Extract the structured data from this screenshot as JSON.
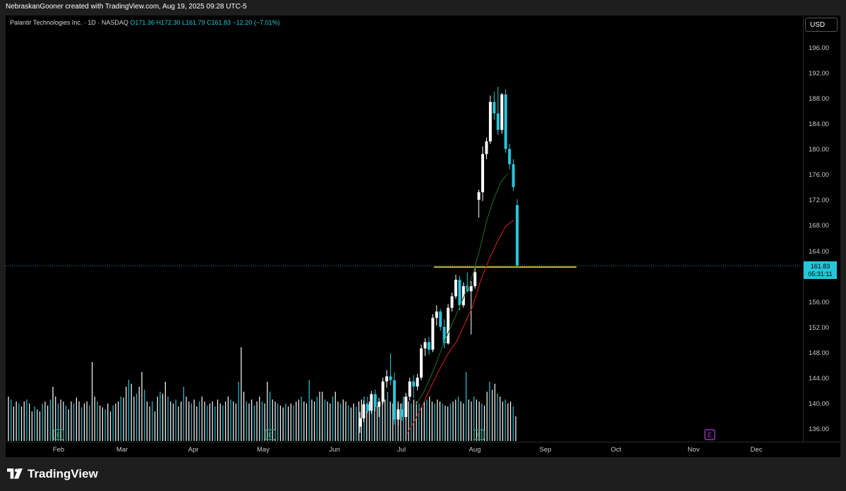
{
  "attribution": "NebraskanGooner created with TradingView.com, Aug 19, 2025 09:28 UTC-5",
  "legend": {
    "symbol": "Palantir Technologies Inc. · 1D · NASDAQ",
    "ohlc": "O171.36 H172.30 L161.79 C161.83 −12.20 (−7.01%)"
  },
  "currency": "USD",
  "last_price": {
    "price": "161.83",
    "countdown": "05:31:11"
  },
  "brand": "TradingView",
  "earnings_marker": "E",
  "colors": {
    "up": "#ffffff",
    "down": "#26c6da",
    "ma_fast": "#1b5e20",
    "ma_slow": "#b71c1c",
    "support": "#ffeb3b",
    "background": "#000000"
  },
  "chart_data": {
    "type": "candlestick",
    "interval": "1D",
    "ylim": [
      135,
      198
    ],
    "y_ticks": [
      "196.00",
      "192.00",
      "188.00",
      "184.00",
      "180.00",
      "176.00",
      "172.00",
      "168.00",
      "164.00",
      "160.00",
      "156.00",
      "152.00",
      "148.00",
      "144.00",
      "140.00",
      "136.00"
    ],
    "x_ticks": [
      "Feb",
      "Mar",
      "Apr",
      "May",
      "Jun",
      "Jul",
      "Aug",
      "Sep",
      "Oct",
      "Nov",
      "Dec"
    ],
    "candles": [
      {
        "date": "2025-06-25",
        "o": 136.5,
        "h": 138.8,
        "l": 135.5,
        "c": 137.8
      },
      {
        "date": "2025-06-26",
        "o": 137.8,
        "h": 140.6,
        "l": 137.2,
        "c": 140.0
      },
      {
        "date": "2025-06-27",
        "o": 140.0,
        "h": 141.2,
        "l": 138.6,
        "c": 139.0
      },
      {
        "date": "2025-06-30",
        "o": 139.0,
        "h": 142.1,
        "l": 138.5,
        "c": 141.6
      },
      {
        "date": "2025-07-01",
        "o": 141.6,
        "h": 142.3,
        "l": 138.9,
        "c": 139.6
      },
      {
        "date": "2025-07-02",
        "o": 139.6,
        "h": 141.0,
        "l": 138.0,
        "c": 140.4
      },
      {
        "date": "2025-07-03",
        "o": 140.4,
        "h": 144.2,
        "l": 140.0,
        "c": 143.6
      },
      {
        "date": "2025-07-07",
        "o": 143.6,
        "h": 145.4,
        "l": 142.6,
        "c": 144.4
      },
      {
        "date": "2025-07-08",
        "o": 144.4,
        "h": 148.0,
        "l": 143.0,
        "c": 143.8
      },
      {
        "date": "2025-07-09",
        "o": 143.8,
        "h": 145.0,
        "l": 136.8,
        "c": 137.6
      },
      {
        "date": "2025-07-10",
        "o": 137.6,
        "h": 140.0,
        "l": 136.6,
        "c": 139.2
      },
      {
        "date": "2025-07-11",
        "o": 139.2,
        "h": 140.2,
        "l": 137.4,
        "c": 138.0
      },
      {
        "date": "2025-07-14",
        "o": 138.0,
        "h": 141.8,
        "l": 137.6,
        "c": 141.2
      },
      {
        "date": "2025-07-15",
        "o": 141.2,
        "h": 144.2,
        "l": 140.6,
        "c": 143.6
      },
      {
        "date": "2025-07-16",
        "o": 143.6,
        "h": 144.6,
        "l": 141.0,
        "c": 142.8
      },
      {
        "date": "2025-07-17",
        "o": 142.8,
        "h": 144.8,
        "l": 142.2,
        "c": 144.2
      },
      {
        "date": "2025-07-18",
        "o": 144.2,
        "h": 149.4,
        "l": 143.8,
        "c": 148.8
      },
      {
        "date": "2025-07-21",
        "o": 148.8,
        "h": 150.4,
        "l": 147.6,
        "c": 149.8
      },
      {
        "date": "2025-07-22",
        "o": 149.8,
        "h": 150.6,
        "l": 147.8,
        "c": 148.6
      },
      {
        "date": "2025-07-23",
        "o": 148.6,
        "h": 154.2,
        "l": 148.2,
        "c": 153.6
      },
      {
        "date": "2025-07-24",
        "o": 153.6,
        "h": 155.6,
        "l": 152.4,
        "c": 154.6
      },
      {
        "date": "2025-07-25",
        "o": 154.6,
        "h": 155.0,
        "l": 151.6,
        "c": 152.2
      },
      {
        "date": "2025-07-28",
        "o": 152.2,
        "h": 153.4,
        "l": 148.8,
        "c": 149.6
      },
      {
        "date": "2025-07-29",
        "o": 149.6,
        "h": 155.8,
        "l": 149.4,
        "c": 155.2
      },
      {
        "date": "2025-07-30",
        "o": 155.2,
        "h": 157.6,
        "l": 154.6,
        "c": 157.0
      },
      {
        "date": "2025-07-31",
        "o": 157.0,
        "h": 160.4,
        "l": 156.6,
        "c": 159.6
      },
      {
        "date": "2025-08-01",
        "o": 159.6,
        "h": 160.2,
        "l": 154.8,
        "c": 155.6
      },
      {
        "date": "2025-08-04",
        "o": 155.6,
        "h": 159.2,
        "l": 155.2,
        "c": 158.6
      },
      {
        "date": "2025-08-05",
        "o": 158.6,
        "h": 160.8,
        "l": 157.6,
        "c": 157.8
      },
      {
        "date": "2025-08-06",
        "o": 157.8,
        "h": 159.4,
        "l": 151.0,
        "c": 158.6
      },
      {
        "date": "2025-08-07",
        "o": 158.6,
        "h": 161.6,
        "l": 158.2,
        "c": 160.8
      },
      {
        "date": "2025-08-08",
        "o": 172.2,
        "h": 173.8,
        "l": 169.4,
        "c": 173.4
      },
      {
        "date": "2025-08-11",
        "o": 173.4,
        "h": 180.6,
        "l": 172.0,
        "c": 179.4
      },
      {
        "date": "2025-08-12",
        "o": 179.4,
        "h": 182.0,
        "l": 178.6,
        "c": 181.4
      },
      {
        "date": "2025-08-13",
        "o": 181.4,
        "h": 188.6,
        "l": 181.0,
        "c": 187.6
      },
      {
        "date": "2025-08-14",
        "o": 187.6,
        "h": 189.2,
        "l": 184.8,
        "c": 185.8
      },
      {
        "date": "2025-08-15",
        "o": 185.8,
        "h": 190.0,
        "l": 182.4,
        "c": 183.2
      },
      {
        "date": "2025-08-18",
        "o": 183.2,
        "h": 189.0,
        "l": 182.6,
        "c": 188.8
      },
      {
        "date": "2025-08-19a",
        "o": 188.8,
        "h": 189.6,
        "l": 179.6,
        "c": 180.2
      },
      {
        "date": "2025-08-19b",
        "o": 180.2,
        "h": 181.0,
        "l": 177.0,
        "c": 177.8
      },
      {
        "date": "2025-08-19c",
        "o": 177.8,
        "h": 178.6,
        "l": 173.6,
        "c": 174.2
      },
      {
        "date": "2025-08-19d",
        "o": 171.36,
        "h": 172.3,
        "l": 161.79,
        "c": 161.83
      }
    ],
    "ma_fast": [
      140.0,
      141.8,
      144.2,
      147.0,
      150.0,
      152.4,
      155.0,
      157.6,
      160.4,
      164.4,
      169.0,
      172.4,
      175.0,
      176.4
    ],
    "ma_slow": [
      135.4,
      137.6,
      140.2,
      143.0,
      145.6,
      148.0,
      149.8,
      152.6,
      155.4,
      159.6,
      162.8,
      165.6,
      168.0,
      169.0
    ],
    "support_level": 161.6,
    "volume_relative": [
      0.45,
      0.42,
      0.35,
      0.4,
      0.38,
      0.35,
      0.4,
      0.42,
      0.38,
      0.3,
      0.35,
      0.32,
      0.3,
      0.38,
      0.4,
      0.36,
      0.42,
      0.55,
      0.45,
      0.38,
      0.42,
      0.4,
      0.36,
      0.32,
      0.4,
      0.38,
      0.44,
      0.4,
      0.34,
      0.38,
      0.4,
      0.36,
      0.8,
      0.45,
      0.4,
      0.36,
      0.34,
      0.32,
      0.38,
      0.3,
      0.36,
      0.38,
      0.4,
      0.45,
      0.44,
      0.55,
      0.62,
      0.58,
      0.45,
      0.48,
      0.55,
      0.7,
      0.52,
      0.4,
      0.35,
      0.4,
      0.3,
      0.45,
      0.5,
      0.48,
      0.6,
      0.45,
      0.4,
      0.38,
      0.42,
      0.35,
      0.4,
      0.55,
      0.45,
      0.4,
      0.38,
      0.42,
      0.35,
      0.4,
      0.45,
      0.4,
      0.36,
      0.38,
      0.4,
      0.35,
      0.42,
      0.38,
      0.36,
      0.4,
      0.45,
      0.42,
      0.4,
      0.38,
      0.6,
      0.95,
      0.5,
      0.4,
      0.38,
      0.42,
      0.36,
      0.4,
      0.45,
      0.4,
      0.38,
      0.6,
      0.5,
      0.42,
      0.4,
      0.38,
      0.36,
      0.34,
      0.38,
      0.35,
      0.38,
      0.36,
      0.4,
      0.42,
      0.45,
      0.4,
      0.38,
      0.62,
      0.42,
      0.4,
      0.45,
      0.5,
      0.5,
      0.42,
      0.4,
      0.38,
      0.45,
      0.5,
      0.4,
      0.38,
      0.42,
      0.4,
      0.36,
      0.34,
      0.38,
      0.35,
      0.4,
      0.42,
      0.45,
      0.38,
      0.4,
      0.36,
      0.38,
      0.35,
      0.38,
      0.4,
      0.42,
      0.5,
      0.4,
      0.38,
      0.42,
      0.4,
      0.38,
      0.45,
      0.42,
      0.4,
      0.38,
      0.42,
      0.4,
      0.38,
      0.35,
      0.4,
      0.42,
      0.45,
      0.4,
      0.38,
      0.42,
      0.4,
      0.38,
      0.36,
      0.35,
      0.38,
      0.4,
      0.42,
      0.45,
      0.4,
      0.38,
      0.7,
      0.42,
      0.4,
      0.45,
      0.42,
      0.4,
      0.38,
      0.36,
      0.5,
      0.6,
      0.52,
      0.58,
      0.48,
      0.45,
      0.4,
      0.42,
      0.38,
      0.4,
      0.35,
      0.25
    ]
  }
}
